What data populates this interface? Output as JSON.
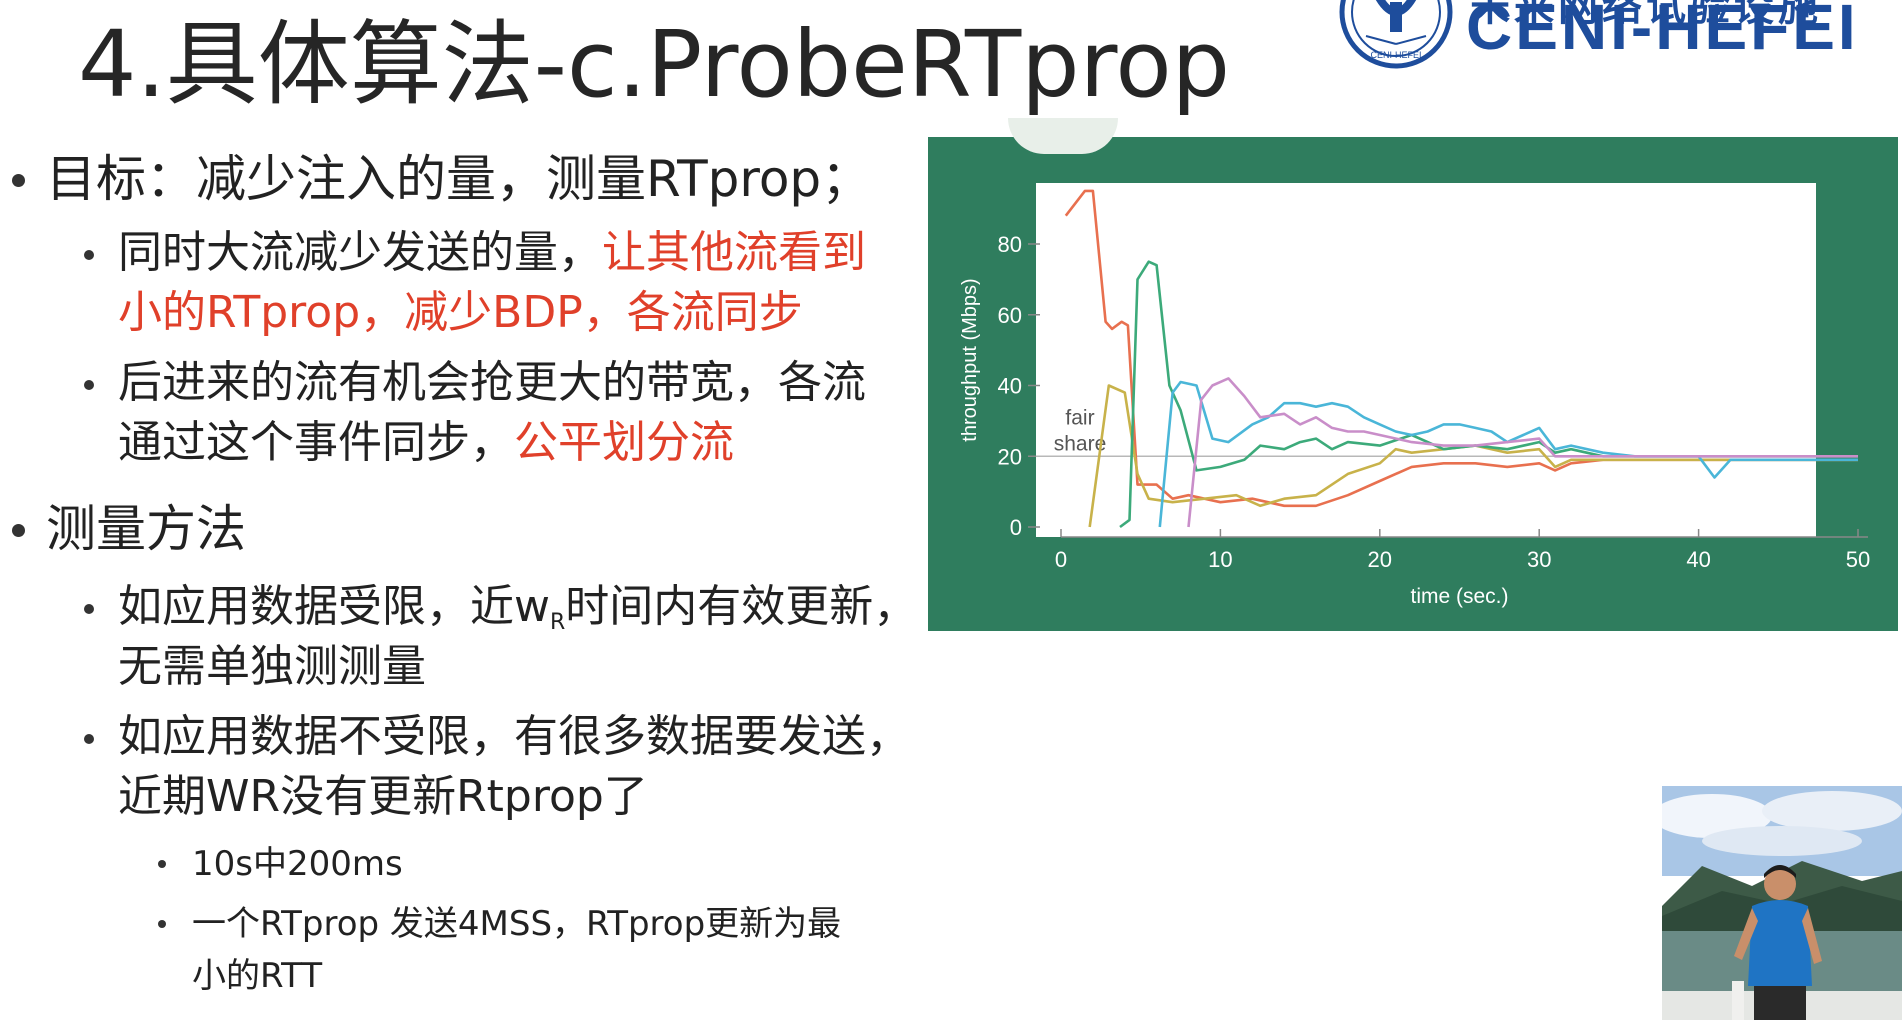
{
  "slide": {
    "title": "4.具体算法-c.ProbeRTprop",
    "logo": {
      "text": "CENI-HEFEI",
      "top_text": "未来网络试验设施",
      "emblem_text": "CENI-HEFEI"
    }
  },
  "bullets": {
    "goal": {
      "text": "目标：减少注入的量，测量RTprop；"
    },
    "goal_sub1": {
      "line1_black": "同时大流减少发送的量，",
      "line1_red": "让其他流看到",
      "line2_red": "小的RTprop，减少BDP，各流同步"
    },
    "goal_sub2": {
      "line1": "后进来的流有机会抢更大的带宽，各流",
      "line2_black": "通过这个事件同步，",
      "line2_red": "公平划分流"
    },
    "method": {
      "text": "测量方法"
    },
    "method_sub1": {
      "line1_pre": "如应用数据受限，近w",
      "line1_sub": "R",
      "line1_post": "时间内有效更新，",
      "line2": "无需单独测测量"
    },
    "method_sub2": {
      "line1": "如应用数据不受限，有很多数据要发送，",
      "line2": "近期WR没有更新Rtprop了"
    },
    "method_sub2_items": [
      {
        "text": "10s中200ms"
      },
      {
        "line1": "一个RTprop 发送4MSS，RTprop更新为最",
        "line2": "小的RTT"
      }
    ]
  },
  "colors": {
    "highlight_red": "#e0402a",
    "chart_panel": "#2f7d5e",
    "logo_blue": "#1e4d9c"
  },
  "chart_data": {
    "type": "line",
    "xlabel": "time (sec.)",
    "ylabel": "throughput (Mbps)",
    "xlim": [
      0,
      50
    ],
    "ylim": [
      0,
      100
    ],
    "x_ticks": [
      "0",
      "10",
      "20",
      "30",
      "40",
      "50"
    ],
    "y_ticks": [
      "0",
      "20",
      "40",
      "60",
      "80"
    ],
    "annotation": "fair share",
    "fair_share": 20,
    "grid": false,
    "series": [
      {
        "color": "#e8704f",
        "points": [
          [
            0.3,
            88
          ],
          [
            1.5,
            95
          ],
          [
            2,
            95
          ],
          [
            2.8,
            58
          ],
          [
            3.2,
            56
          ],
          [
            3.8,
            58
          ],
          [
            4.2,
            57
          ],
          [
            4.8,
            12
          ],
          [
            6,
            12
          ],
          [
            7,
            8
          ],
          [
            8,
            9
          ],
          [
            10,
            7
          ],
          [
            12,
            8
          ],
          [
            14,
            6
          ],
          [
            16,
            6
          ],
          [
            18,
            9
          ],
          [
            20,
            13
          ],
          [
            22,
            17
          ],
          [
            24,
            18
          ],
          [
            26,
            18
          ],
          [
            28,
            17
          ],
          [
            30,
            18
          ],
          [
            31,
            16
          ],
          [
            32,
            18
          ],
          [
            34,
            19
          ],
          [
            36,
            19
          ],
          [
            38,
            19
          ],
          [
            40,
            19
          ],
          [
            42,
            19
          ],
          [
            44,
            19
          ],
          [
            46,
            19
          ],
          [
            48,
            19
          ],
          [
            50,
            19
          ]
        ]
      },
      {
        "color": "#c8b24a",
        "points": [
          [
            1.8,
            0
          ],
          [
            3,
            40
          ],
          [
            4,
            38
          ],
          [
            4.8,
            15
          ],
          [
            5.5,
            8
          ],
          [
            7,
            7
          ],
          [
            9,
            8
          ],
          [
            11,
            9
          ],
          [
            12.5,
            6
          ],
          [
            14,
            8
          ],
          [
            16,
            9
          ],
          [
            18,
            15
          ],
          [
            20,
            18
          ],
          [
            21,
            22
          ],
          [
            22,
            21
          ],
          [
            24,
            22
          ],
          [
            26,
            23
          ],
          [
            28,
            21
          ],
          [
            30,
            22
          ],
          [
            31,
            17
          ],
          [
            32,
            19
          ],
          [
            34,
            19
          ],
          [
            36,
            19
          ],
          [
            38,
            19
          ],
          [
            40,
            19
          ],
          [
            42,
            19
          ],
          [
            44,
            19
          ],
          [
            46,
            19
          ],
          [
            48,
            19
          ],
          [
            50,
            19
          ]
        ]
      },
      {
        "color": "#3caa7a",
        "points": [
          [
            3.7,
            0
          ],
          [
            4.3,
            2
          ],
          [
            4.8,
            70
          ],
          [
            5.5,
            75
          ],
          [
            6,
            74
          ],
          [
            6.8,
            40
          ],
          [
            7.5,
            33
          ],
          [
            8.5,
            16
          ],
          [
            10,
            17
          ],
          [
            11.5,
            19
          ],
          [
            12.5,
            23
          ],
          [
            14,
            22
          ],
          [
            15,
            24
          ],
          [
            16,
            25
          ],
          [
            17,
            22
          ],
          [
            18,
            24
          ],
          [
            20,
            23
          ],
          [
            22,
            26
          ],
          [
            24,
            22
          ],
          [
            26,
            23
          ],
          [
            28,
            22
          ],
          [
            30,
            24
          ],
          [
            31,
            21
          ],
          [
            32,
            22
          ],
          [
            34,
            20
          ],
          [
            36,
            20
          ],
          [
            38,
            20
          ],
          [
            40,
            20
          ],
          [
            42,
            20
          ],
          [
            44,
            20
          ],
          [
            46,
            20
          ],
          [
            48,
            20
          ],
          [
            50,
            20
          ]
        ]
      },
      {
        "color": "#4ab6d8",
        "points": [
          [
            6.2,
            0
          ],
          [
            7,
            38
          ],
          [
            7.5,
            41
          ],
          [
            8.5,
            40
          ],
          [
            9.5,
            25
          ],
          [
            10.5,
            24
          ],
          [
            12,
            29
          ],
          [
            13,
            31
          ],
          [
            14,
            35
          ],
          [
            15,
            35
          ],
          [
            16,
            34
          ],
          [
            17,
            35
          ],
          [
            18,
            34
          ],
          [
            19,
            31
          ],
          [
            20,
            29
          ],
          [
            21,
            27
          ],
          [
            22,
            26
          ],
          [
            23,
            27
          ],
          [
            24,
            29
          ],
          [
            25,
            29
          ],
          [
            26,
            28
          ],
          [
            27,
            27
          ],
          [
            28,
            24
          ],
          [
            29,
            26
          ],
          [
            30,
            28
          ],
          [
            31,
            22
          ],
          [
            32,
            23
          ],
          [
            34,
            21
          ],
          [
            36,
            20
          ],
          [
            38,
            20
          ],
          [
            40,
            20
          ],
          [
            41,
            14
          ],
          [
            42,
            19
          ],
          [
            44,
            19
          ],
          [
            46,
            19
          ],
          [
            48,
            19
          ],
          [
            50,
            19
          ]
        ]
      },
      {
        "color": "#c98ec9",
        "points": [
          [
            8,
            0
          ],
          [
            8.8,
            36
          ],
          [
            9.5,
            40
          ],
          [
            10.5,
            42
          ],
          [
            11.5,
            37
          ],
          [
            12.5,
            31
          ],
          [
            14,
            32
          ],
          [
            15,
            29
          ],
          [
            16,
            31
          ],
          [
            17,
            28
          ],
          [
            18,
            27
          ],
          [
            19,
            27
          ],
          [
            20,
            26
          ],
          [
            22,
            24
          ],
          [
            24,
            23
          ],
          [
            26,
            23
          ],
          [
            28,
            24
          ],
          [
            30,
            25
          ],
          [
            31,
            20
          ],
          [
            32,
            20
          ],
          [
            34,
            20
          ],
          [
            36,
            20
          ],
          [
            38,
            20
          ],
          [
            40,
            20
          ],
          [
            42,
            20
          ],
          [
            44,
            20
          ],
          [
            46,
            20
          ],
          [
            48,
            20
          ],
          [
            50,
            20
          ]
        ]
      }
    ]
  }
}
